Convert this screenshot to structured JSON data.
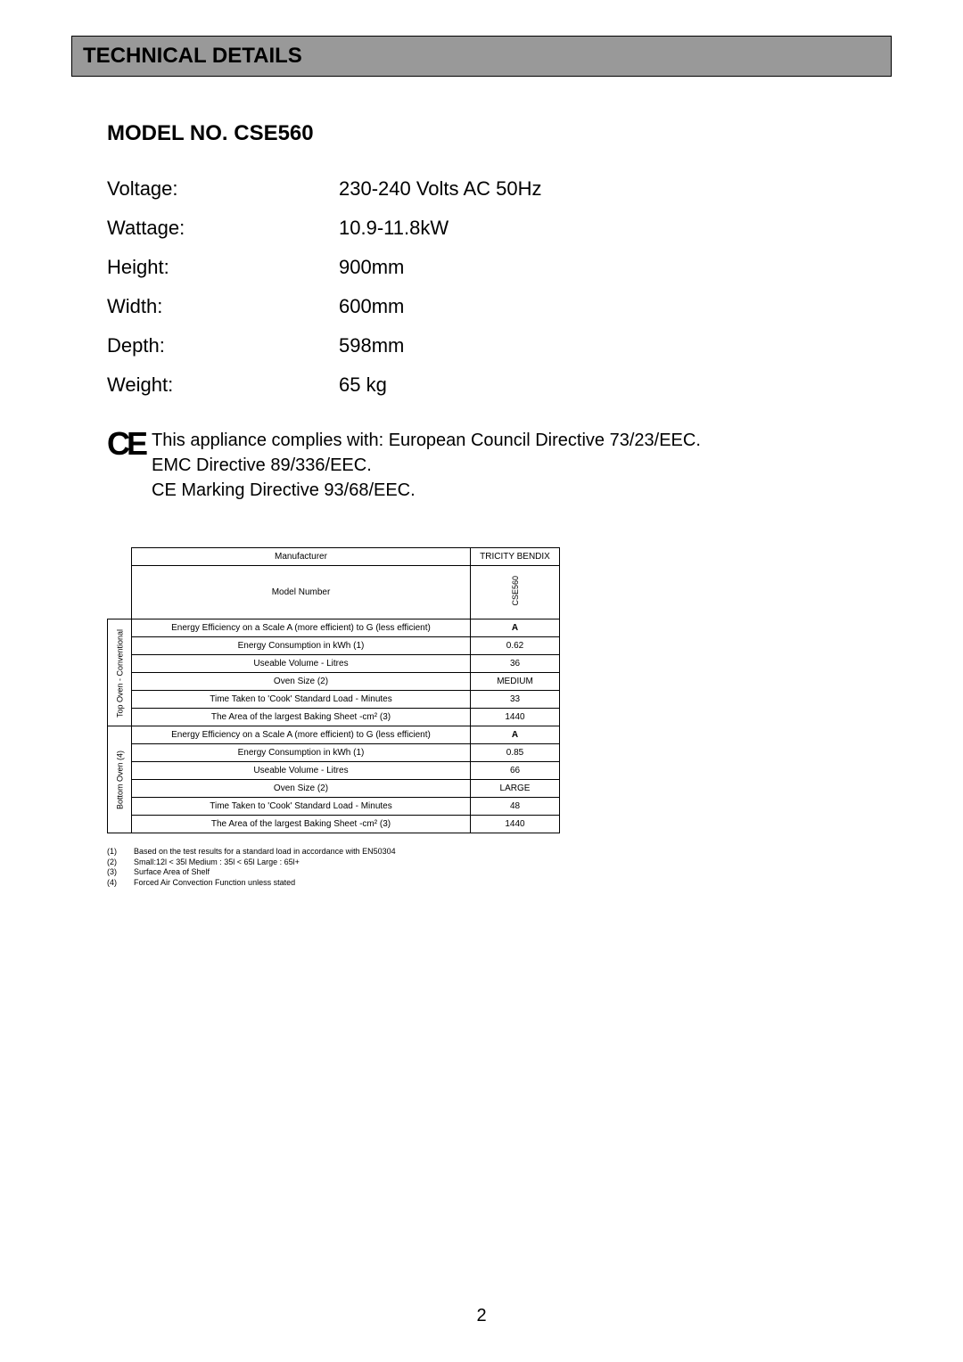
{
  "header": {
    "title": "TECHNICAL DETAILS"
  },
  "model": {
    "title": "MODEL NO. CSE560"
  },
  "specs": [
    {
      "label": "Voltage:",
      "value": "230-240 Volts AC 50Hz"
    },
    {
      "label": "Wattage:",
      "value": "10.9-11.8kW"
    },
    {
      "label": "Height:",
      "value": "900mm"
    },
    {
      "label": "Width:",
      "value": "600mm"
    },
    {
      "label": "Depth:",
      "value": "598mm"
    },
    {
      "label": "Weight:",
      "value": "65 kg"
    }
  ],
  "compliance": {
    "mark": "CE",
    "line1": "This appliance complies with: European Council Directive 73/23/EEC.",
    "line2": "EMC Directive 89/336/EEC.",
    "line3": "CE Marking Directive 93/68/EEC."
  },
  "dataTable": {
    "manufacturer_label": "Manufacturer",
    "manufacturer_value": "TRICITY BENDIX",
    "model_label": "Model Number",
    "model_value": "CSE560",
    "section1_label": "Top Oven - Conventional",
    "section2_label": "Bottom Oven (4)",
    "rows1": [
      {
        "label": "Energy Efficiency on a Scale A (more efficient) to G (less efficient)",
        "value": "A",
        "bold": true
      },
      {
        "label": "Energy Consumption in kWh (1)",
        "value": "0.62"
      },
      {
        "label": "Useable Volume - Litres",
        "value": "36"
      },
      {
        "label": "Oven Size (2)",
        "value": "MEDIUM"
      },
      {
        "label": "Time Taken to 'Cook' Standard Load - Minutes",
        "value": "33"
      },
      {
        "label": "The Area of the largest Baking Sheet -cm² (3)",
        "value": "1440"
      }
    ],
    "rows2": [
      {
        "label": "Energy Efficiency on a Scale A (more efficient) to G (less efficient)",
        "value": "A",
        "bold": true
      },
      {
        "label": "Energy Consumption in kWh (1)",
        "value": "0.85"
      },
      {
        "label": "Useable Volume - Litres",
        "value": "66"
      },
      {
        "label": "Oven Size (2)",
        "value": "LARGE"
      },
      {
        "label": "Time Taken to 'Cook' Standard Load - Minutes",
        "value": "48"
      },
      {
        "label": "The Area of the largest Baking Sheet -cm² (3)",
        "value": "1440"
      }
    ]
  },
  "footnotes": [
    {
      "num": "(1)",
      "text": "Based on the test results for a standard load in accordance with EN50304"
    },
    {
      "num": "(2)",
      "text": "Small:12l < 35l Medium : 35l < 65l Large : 65l+"
    },
    {
      "num": "(3)",
      "text": "Surface Area of Shelf"
    },
    {
      "num": "(4)",
      "text": "Forced Air Convection Function unless stated"
    }
  ],
  "pageNumber": "2"
}
